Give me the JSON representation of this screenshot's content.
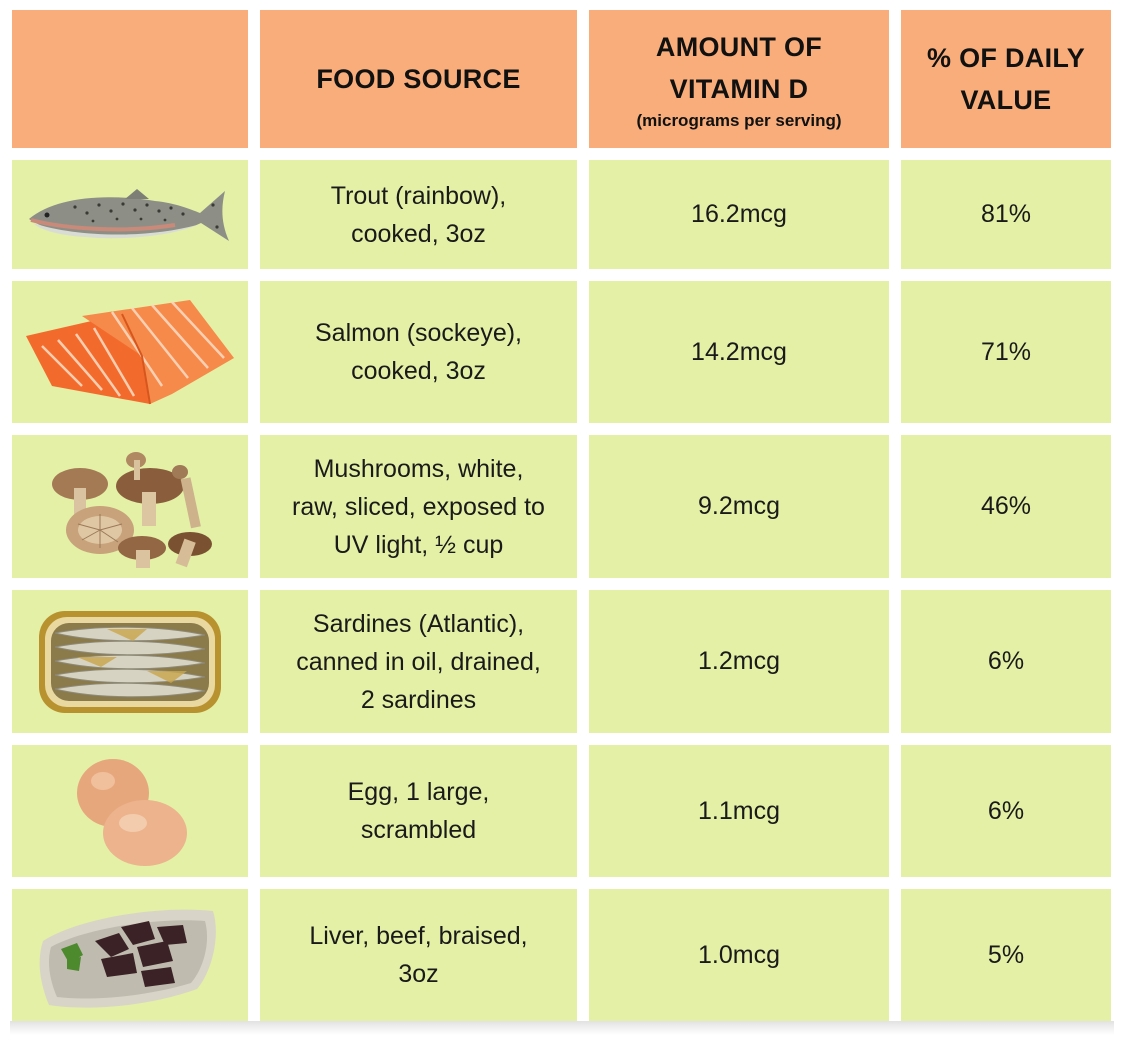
{
  "headers": {
    "image": "",
    "food_source": "FOOD SOURCE",
    "amount_line1": "AMOUNT OF",
    "amount_line2": "VITAMIN D",
    "amount_sub": "(micrograms per serving)",
    "daily_line1": "% OF DAILY",
    "daily_line2": "VALUE"
  },
  "rows": [
    {
      "icon": "trout-icon",
      "food": [
        "Trout (rainbow),",
        "cooked, 3oz"
      ],
      "amount": "16.2mcg",
      "daily": "81%"
    },
    {
      "icon": "salmon-icon",
      "food": [
        "Salmon (sockeye),",
        "cooked, 3oz"
      ],
      "amount": "14.2mcg",
      "daily": "71%"
    },
    {
      "icon": "mushrooms-icon",
      "food": [
        "Mushrooms, white,",
        "raw, sliced, exposed to",
        "UV light, ½ cup"
      ],
      "amount": "9.2mcg",
      "daily": "46%"
    },
    {
      "icon": "sardines-icon",
      "food": [
        "Sardines (Atlantic),",
        "canned in oil, drained,",
        "2 sardines"
      ],
      "amount": "1.2mcg",
      "daily": "6%"
    },
    {
      "icon": "eggs-icon",
      "food": [
        "Egg, 1 large,",
        "scrambled"
      ],
      "amount": "1.1mcg",
      "daily": "6%"
    },
    {
      "icon": "liver-icon",
      "food": [
        "Liver, beef, braised,",
        "3oz"
      ],
      "amount": "1.0mcg",
      "daily": "5%"
    }
  ],
  "colors": {
    "header_bg": "#f8ad7a",
    "row_bg": "#e3f0a6"
  }
}
